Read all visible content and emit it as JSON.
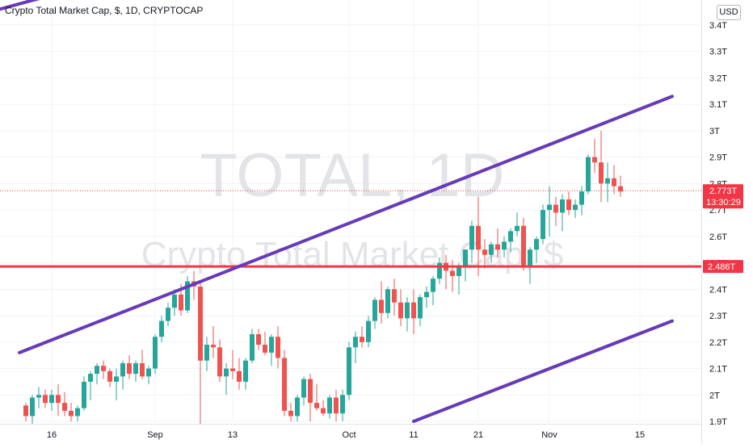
{
  "header": {
    "title": "Crypto Total Market Cap, $, 1D, CRYPTOCAP",
    "currency": "USD"
  },
  "watermark": {
    "symbol": "TOTAL, 1D",
    "name": "Crypto Total Market Cap, $"
  },
  "colors": {
    "up": "#26a69a",
    "down": "#ef5350",
    "channel": "#673ab7",
    "level": "#f23645",
    "price_line": "#f23645"
  },
  "chart_data": {
    "type": "candlestick",
    "ylim": [
      1.9,
      3.45
    ],
    "y_ticks": [
      {
        "value": 1.9,
        "label": "1.9T"
      },
      {
        "value": 2.0,
        "label": "2T"
      },
      {
        "value": 2.1,
        "label": "2.1T"
      },
      {
        "value": 2.2,
        "label": "2.2T"
      },
      {
        "value": 2.3,
        "label": "2.3T"
      },
      {
        "value": 2.4,
        "label": "2.4T"
      },
      {
        "value": 2.5,
        "label": "2.5T"
      },
      {
        "value": 2.6,
        "label": "2.6T"
      },
      {
        "value": 2.7,
        "label": "2.7T"
      },
      {
        "value": 2.8,
        "label": "2.8T"
      },
      {
        "value": 2.9,
        "label": "2.9T"
      },
      {
        "value": 3.0,
        "label": "3T"
      },
      {
        "value": 3.1,
        "label": "3.1T"
      },
      {
        "value": 3.2,
        "label": "3.2T"
      },
      {
        "value": 3.3,
        "label": "3.3T"
      },
      {
        "value": 3.4,
        "label": "3.4T"
      }
    ],
    "x_ticks": [
      {
        "index": 4,
        "label": "16"
      },
      {
        "index": 20,
        "label": "Sep"
      },
      {
        "index": 32,
        "label": "13"
      },
      {
        "index": 50,
        "label": "Oct"
      },
      {
        "index": 60,
        "label": "11"
      },
      {
        "index": 70,
        "label": "21"
      },
      {
        "index": 81,
        "label": "Nov"
      },
      {
        "index": 95,
        "label": "15"
      }
    ],
    "candles": [
      [
        1.96,
        1.97,
        1.9,
        1.92
      ],
      [
        1.92,
        2.0,
        1.88,
        1.99
      ],
      [
        1.99,
        2.03,
        1.95,
        2.0
      ],
      [
        2.0,
        2.02,
        1.95,
        1.97
      ],
      [
        1.97,
        2.02,
        1.94,
        2.0
      ],
      [
        2.0,
        2.04,
        1.92,
        1.97
      ],
      [
        1.97,
        2.01,
        1.92,
        1.94
      ],
      [
        1.94,
        1.97,
        1.9,
        1.92
      ],
      [
        1.92,
        1.96,
        1.9,
        1.95
      ],
      [
        1.95,
        2.07,
        1.94,
        2.05
      ],
      [
        2.05,
        2.09,
        1.98,
        2.08
      ],
      [
        2.08,
        2.12,
        2.04,
        2.11
      ],
      [
        2.11,
        2.13,
        2.06,
        2.09
      ],
      [
        2.09,
        2.1,
        2.03,
        2.05
      ],
      [
        2.05,
        2.1,
        1.98,
        2.07
      ],
      [
        2.07,
        2.13,
        2.02,
        2.12
      ],
      [
        2.12,
        2.15,
        2.06,
        2.08
      ],
      [
        2.08,
        2.13,
        2.05,
        2.12
      ],
      [
        2.12,
        2.17,
        2.06,
        2.07
      ],
      [
        2.07,
        2.11,
        2.04,
        2.1
      ],
      [
        2.1,
        2.23,
        2.08,
        2.22
      ],
      [
        2.22,
        2.3,
        2.2,
        2.28
      ],
      [
        2.28,
        2.35,
        2.26,
        2.33
      ],
      [
        2.33,
        2.4,
        2.3,
        2.38
      ],
      [
        2.38,
        2.42,
        2.3,
        2.32
      ],
      [
        2.32,
        2.45,
        2.31,
        2.43
      ],
      [
        2.43,
        2.47,
        2.36,
        2.41
      ],
      [
        2.41,
        2.43,
        1.88,
        2.13
      ],
      [
        2.13,
        2.22,
        2.09,
        2.19
      ],
      [
        2.19,
        2.26,
        2.14,
        2.18
      ],
      [
        2.18,
        2.21,
        2.05,
        2.07
      ],
      [
        2.07,
        2.12,
        2.0,
        2.1
      ],
      [
        2.1,
        2.17,
        2.06,
        2.09
      ],
      [
        2.09,
        2.14,
        2.02,
        2.05
      ],
      [
        2.05,
        2.14,
        2.02,
        2.13
      ],
      [
        2.13,
        2.25,
        2.12,
        2.23
      ],
      [
        2.23,
        2.25,
        2.17,
        2.19
      ],
      [
        2.19,
        2.24,
        2.15,
        2.16
      ],
      [
        2.16,
        2.23,
        2.11,
        2.22
      ],
      [
        2.22,
        2.26,
        2.1,
        2.14
      ],
      [
        2.14,
        2.17,
        1.92,
        1.94
      ],
      [
        1.94,
        1.97,
        1.9,
        1.92
      ],
      [
        1.92,
        2.0,
        1.9,
        1.99
      ],
      [
        1.99,
        2.07,
        1.96,
        2.06
      ],
      [
        2.06,
        2.08,
        1.9,
        1.97
      ],
      [
        1.97,
        2.04,
        1.94,
        1.95
      ],
      [
        1.95,
        1.98,
        1.92,
        1.93
      ],
      [
        1.93,
        2.0,
        1.91,
        1.99
      ],
      [
        1.99,
        2.02,
        1.9,
        1.93
      ],
      [
        1.93,
        2.02,
        1.9,
        2.0
      ],
      [
        2.0,
        2.2,
        1.98,
        2.18
      ],
      [
        2.18,
        2.24,
        2.12,
        2.22
      ],
      [
        2.22,
        2.26,
        2.18,
        2.2
      ],
      [
        2.2,
        2.3,
        2.18,
        2.28
      ],
      [
        2.28,
        2.37,
        2.25,
        2.36
      ],
      [
        2.36,
        2.43,
        2.27,
        2.31
      ],
      [
        2.31,
        2.41,
        2.29,
        2.4
      ],
      [
        2.4,
        2.44,
        2.3,
        2.35
      ],
      [
        2.35,
        2.4,
        2.26,
        2.29
      ],
      [
        2.29,
        2.37,
        2.24,
        2.35
      ],
      [
        2.35,
        2.4,
        2.23,
        2.29
      ],
      [
        2.29,
        2.38,
        2.26,
        2.37
      ],
      [
        2.37,
        2.41,
        2.33,
        2.39
      ],
      [
        2.39,
        2.45,
        2.34,
        2.44
      ],
      [
        2.44,
        2.52,
        2.42,
        2.5
      ],
      [
        2.5,
        2.53,
        2.4,
        2.47
      ],
      [
        2.47,
        2.51,
        2.39,
        2.45
      ],
      [
        2.45,
        2.5,
        2.38,
        2.49
      ],
      [
        2.49,
        2.55,
        2.43,
        2.55
      ],
      [
        2.55,
        2.66,
        2.5,
        2.64
      ],
      [
        2.64,
        2.75,
        2.45,
        2.55
      ],
      [
        2.55,
        2.59,
        2.48,
        2.53
      ],
      [
        2.53,
        2.58,
        2.5,
        2.57
      ],
      [
        2.57,
        2.63,
        2.52,
        2.55
      ],
      [
        2.55,
        2.6,
        2.52,
        2.58
      ],
      [
        2.58,
        2.63,
        2.54,
        2.62
      ],
      [
        2.62,
        2.69,
        2.6,
        2.64
      ],
      [
        2.64,
        2.67,
        2.47,
        2.49
      ],
      [
        2.49,
        2.56,
        2.42,
        2.55
      ],
      [
        2.55,
        2.6,
        2.5,
        2.59
      ],
      [
        2.59,
        2.72,
        2.57,
        2.7
      ],
      [
        2.7,
        2.79,
        2.6,
        2.72
      ],
      [
        2.72,
        2.75,
        2.64,
        2.69
      ],
      [
        2.69,
        2.76,
        2.62,
        2.74
      ],
      [
        2.74,
        2.77,
        2.68,
        2.7
      ],
      [
        2.7,
        2.74,
        2.67,
        2.72
      ],
      [
        2.72,
        2.79,
        2.68,
        2.77
      ],
      [
        2.77,
        2.91,
        2.76,
        2.9
      ],
      [
        2.9,
        2.97,
        2.84,
        2.88
      ],
      [
        2.88,
        3.0,
        2.73,
        2.8
      ],
      [
        2.8,
        2.88,
        2.73,
        2.82
      ],
      [
        2.82,
        2.87,
        2.76,
        2.79
      ],
      [
        2.79,
        2.83,
        2.75,
        2.77
      ]
    ],
    "trendlines": [
      {
        "role": "channel-upper",
        "points": [
          [
            -13,
            3.4
          ],
          [
            17,
            3.6
          ]
        ]
      },
      {
        "role": "channel-middle",
        "points": [
          [
            -1,
            2.16
          ],
          [
            100,
            3.13
          ]
        ]
      },
      {
        "role": "channel-lower",
        "points": [
          [
            60,
            1.9
          ],
          [
            100,
            2.28
          ]
        ]
      }
    ],
    "horizontal_level": {
      "value": 2.486,
      "label": "2.486T"
    },
    "last_price": {
      "value": 2.773,
      "label": "2.773T",
      "countdown": "13:30:29"
    }
  }
}
